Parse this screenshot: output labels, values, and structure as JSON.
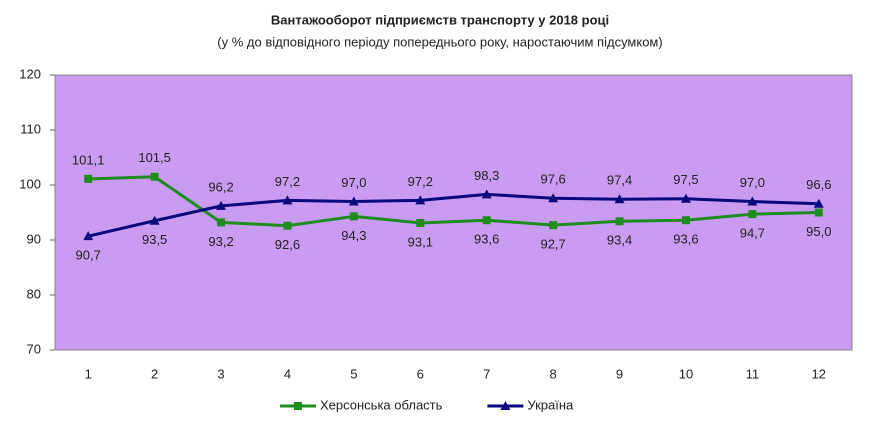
{
  "chart_data": {
    "type": "line",
    "title": "Вантажооборот підприємств транспорту у 2018 році",
    "subtitle": "(у % до відповідного періоду попереднього року, наростаючим підсумком)",
    "categories": [
      "1",
      "2",
      "3",
      "4",
      "5",
      "6",
      "7",
      "8",
      "9",
      "10",
      "11",
      "12"
    ],
    "series": [
      {
        "name": "Херсонська область",
        "color": "#1e8c1e",
        "marker": "square",
        "values": [
          101.1,
          101.5,
          93.2,
          92.6,
          94.3,
          93.1,
          93.6,
          92.7,
          93.4,
          93.6,
          94.7,
          95.0
        ],
        "value_labels": [
          "101,1",
          "101,5",
          "93,2",
          "92,6",
          "94,3",
          "93,1",
          "93,6",
          "92,7",
          "93,4",
          "93,6",
          "94,7",
          "95,0"
        ]
      },
      {
        "name": "Україна",
        "color": "#0a0a7a",
        "marker": "triangle",
        "values": [
          90.7,
          93.5,
          96.2,
          97.2,
          97.0,
          97.2,
          98.3,
          97.6,
          97.4,
          97.5,
          97.0,
          96.6
        ],
        "value_labels": [
          "90,7",
          "93,5",
          "96,2",
          "97,2",
          "97,0",
          "97,2",
          "98,3",
          "97,6",
          "97,4",
          "97,5",
          "97,0",
          "96,6"
        ]
      }
    ],
    "ylim": [
      70,
      120
    ],
    "yticks": [
      70,
      80,
      90,
      100,
      110,
      120
    ],
    "plot_background": "#c99cf2",
    "legend": "bottom"
  }
}
